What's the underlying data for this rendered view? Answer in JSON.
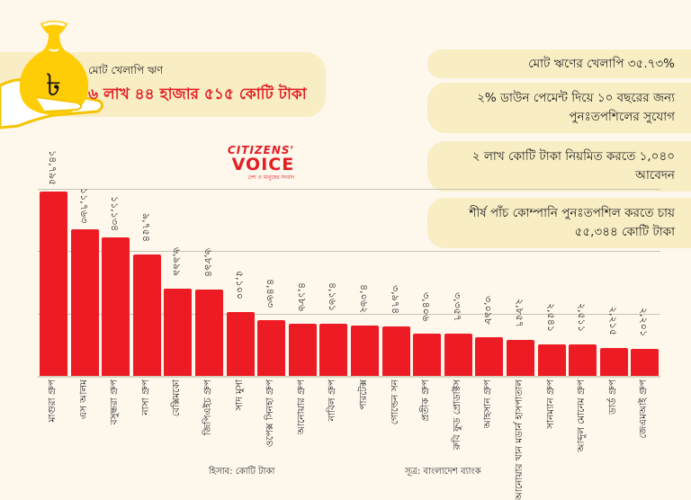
{
  "header": {
    "total_label": "মোট খেলাপি ঋণ",
    "total_value": "৬ লাখ ৪৪ হাজার ৫১৫ কোটি টাকা",
    "taka_symbol": "৳"
  },
  "highlights": [
    {
      "text": "মোট ঋণের খেলাপি ৩৫.৭৩%"
    },
    {
      "text": "২% ডাউন পেমেন্ট দিয়ে ১০ বছরের জন্য পুনঃতপশিলের সুযোগ"
    },
    {
      "text": "২ লাখ কোটি টাকা নিয়মিত করতে ১,০৪০ আবেদন"
    },
    {
      "text": "শীর্ষ পাঁচ কোম্পানি পুনঃতপশিল করতে চায় ৫৫,৩৪৪ কোটি টাকা"
    }
  ],
  "logo": {
    "line1": "CITIZENS'",
    "line2": "VOICE",
    "tagline": "দেশ ও মানুষের সংবাদ"
  },
  "footer": {
    "unit": "হিসাব: কোটি টাকা",
    "source": "সূত্র: বাংলাদেশ ব্যাংক"
  },
  "colors": {
    "bar": "#ed1c24",
    "accent_text": "#e31e24",
    "band": "#f8edc3",
    "background": "#fdf7ec"
  },
  "chart_data": {
    "type": "bar",
    "title": "মোট খেলাপি ঋণ",
    "ylabel": "কোটি টাকা",
    "xlabel": "",
    "ylim": [
      0,
      15000
    ],
    "grid": true,
    "categories": [
      "মাগুরা গ্রুপ",
      "এস আলম",
      "বসুন্ধরা গ্রুপ",
      "নাসা গ্রুপ",
      "বেক্সিমকো",
      "জিপিএইচ গ্রুপ",
      "সাদ মুসা",
      "ওপেক্স সিনহা গ্রুপ",
      "আনোয়ার গ্রুপ",
      "নাবিল গ্রুপ",
      "পারটেক্স",
      "গোল্ডেন সন",
      "প্রতীক গ্রুপ",
      "রুবি ফুড প্রোডাক্টস",
      "আহসান গ্রুপ",
      "আনোয়ার খান মডার্ন হাসপাতাল",
      "সানম্যান গ্রুপ",
      "আব্দুল মোনেম গ্রুপ",
      "ডার্ড গ্রুপ",
      "জেএমআই গ্রুপ"
    ],
    "labels": [
      "১৪,৭৯৫",
      "১১,৭৬৩",
      "১১,১৩৪",
      "৯,৭৫৪",
      "৬,৯৯৯",
      "৬,৮৯৪",
      "৫,১০০",
      "৪,৪৬৩",
      "৪,১৮৬",
      "৪,১৬১",
      "৪,০৬২",
      "৩,৯৭৪",
      "৩,৪০৬",
      "৩,৩৫৭",
      "৩,০৯৮",
      "২,৮৫৭",
      "২,৫৪১",
      "২,৫১১",
      "২,২১৫",
      "২,২০১"
    ],
    "values": [
      14795,
      11763,
      11134,
      9754,
      6999,
      6894,
      5100,
      4463,
      4186,
      4161,
      4062,
      3974,
      3406,
      3357,
      3098,
      2857,
      2541,
      2511,
      2215,
      2201
    ]
  }
}
